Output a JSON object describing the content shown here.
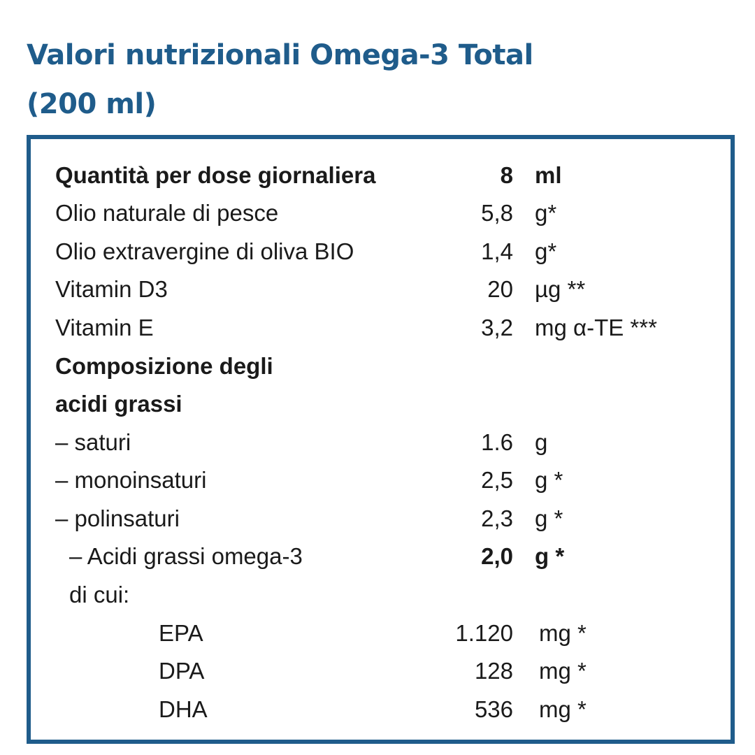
{
  "title": {
    "line1": "Valori nutrizionali Omega-3 Total",
    "line2": "(200 ml)"
  },
  "rows": [
    {
      "label": "Quantità per dose giornaliera",
      "value": "8",
      "unit": "ml"
    },
    {
      "label": "Olio naturale di pesce",
      "value": "5,8",
      "unit": "g*"
    },
    {
      "label": "Olio extravergine di oliva BIO",
      "value": "1,4",
      "unit": "g*"
    },
    {
      "label": "Vitamin D3",
      "value": "20",
      "unit": "µg **"
    },
    {
      "label": "Vitamin E",
      "value": "3,2",
      "unit": "mg α-TE ***"
    },
    {
      "label": "Composizione degli",
      "value": "",
      "unit": ""
    },
    {
      "label": "acidi grassi",
      "value": "",
      "unit": ""
    },
    {
      "label": "– saturi",
      "value": "1.6",
      "unit": "g"
    },
    {
      "label": "– monoinsaturi",
      "value": "2,5",
      "unit": "g *"
    },
    {
      "label": "– polinsaturi",
      "value": "2,3",
      "unit": "g *"
    },
    {
      "label": "– Acidi grassi omega-3",
      "value": "2,0",
      "unit": "g *"
    },
    {
      "label": "di cui:",
      "value": "",
      "unit": ""
    },
    {
      "label": "EPA",
      "value": "1.120",
      "unit": "mg *"
    },
    {
      "label": "DPA",
      "value": "128",
      "unit": "mg *"
    },
    {
      "label": "DHA",
      "value": "536",
      "unit": "mg *"
    }
  ]
}
